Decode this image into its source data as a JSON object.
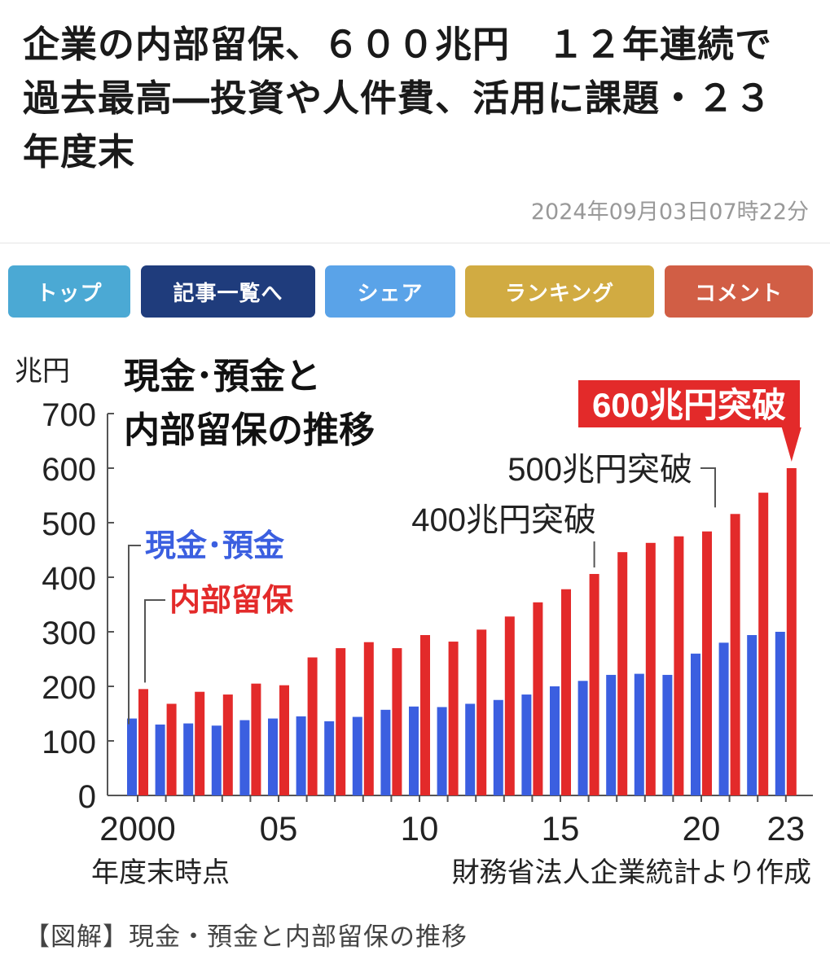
{
  "article": {
    "headline": "企業の内部留保、６００兆円　１２年連続で過去最高―投資や人件費、活用に課題・２３年度末",
    "timestamp": "2024年09月03日07時22分",
    "caption": "【図解】現金・預金と内部留保の推移"
  },
  "nav": {
    "buttons": [
      {
        "label": "トップ",
        "color": "#4ba9d4"
      },
      {
        "label": "記事一覧へ",
        "color": "#1f3c7c"
      },
      {
        "label": "シェア",
        "color": "#5aa3e8"
      },
      {
        "label": "ランキング",
        "color": "#d1ab42"
      },
      {
        "label": "コメント",
        "color": "#d15e45"
      }
    ]
  },
  "chart_data": {
    "type": "bar",
    "title": "現金･預金と内部留保の推移",
    "ylabel": "兆円",
    "ylim": [
      0,
      700
    ],
    "yticks": [
      "0",
      "100",
      "200",
      "300",
      "400",
      "500",
      "600",
      "700"
    ],
    "x_tick_labels": [
      "2000",
      "05",
      "10",
      "15",
      "20",
      "23"
    ],
    "x_tick_years": [
      2000,
      2005,
      2010,
      2015,
      2020,
      2023
    ],
    "xlabel": "年度末時点",
    "source": "財務省法人企業統計より作成",
    "years": [
      2000,
      2001,
      2002,
      2003,
      2004,
      2005,
      2006,
      2007,
      2008,
      2009,
      2010,
      2011,
      2012,
      2013,
      2014,
      2015,
      2016,
      2017,
      2018,
      2019,
      2020,
      2021,
      2022,
      2023
    ],
    "series": [
      {
        "name": "現金･預金",
        "color": "#3b5fe0",
        "values": [
          141,
          130,
          132,
          128,
          138,
          141,
          145,
          136,
          144,
          157,
          163,
          162,
          168,
          175,
          185,
          200,
          210,
          221,
          223,
          221,
          260,
          280,
          294,
          300
        ]
      },
      {
        "name": "内部留保",
        "color": "#e32a2a",
        "values": [
          195,
          168,
          190,
          185,
          205,
          202,
          253,
          270,
          281,
          270,
          294,
          282,
          304,
          328,
          354,
          378,
          406,
          446,
          463,
          475,
          484,
          516,
          555,
          600
        ]
      }
    ],
    "annotations": [
      {
        "text": "400兆円突破",
        "year": 2016
      },
      {
        "text": "500兆円突破",
        "year": 2021
      },
      {
        "text": "600兆円突破",
        "year": 2023,
        "highlight": true
      }
    ],
    "colors": {
      "axis": "#555555",
      "text": "#222222",
      "title": "#111111"
    }
  }
}
